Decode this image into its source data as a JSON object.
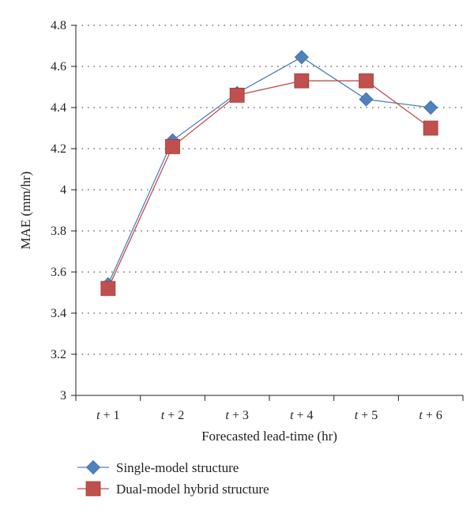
{
  "chart_data": {
    "type": "line",
    "categories": [
      {
        "var": "t",
        "rest": " + 1"
      },
      {
        "var": "t",
        "rest": " + 2"
      },
      {
        "var": "t",
        "rest": " + 3"
      },
      {
        "var": "t",
        "rest": " + 4"
      },
      {
        "var": "t",
        "rest": " + 5"
      },
      {
        "var": "t",
        "rest": " + 6"
      }
    ],
    "series": [
      {
        "name": "Single-model structure",
        "values": [
          3.54,
          4.24,
          4.47,
          4.645,
          4.44,
          4.4
        ],
        "color": "#4F81BD",
        "marker": "diamond"
      },
      {
        "name": "Dual-model hybrid structure",
        "values": [
          3.52,
          4.21,
          4.46,
          4.53,
          4.53,
          4.3
        ],
        "color": "#C0504D",
        "marker": "square"
      }
    ],
    "xlabel": "Forecasted lead-time (hr)",
    "ylabel": "MAE (mm/hr)",
    "ylim": [
      3,
      4.8
    ],
    "yticks": [
      "3",
      "3.2",
      "3.4",
      "3.6",
      "3.8",
      "4",
      "4.2",
      "4.4",
      "4.6",
      "4.8"
    ],
    "grid": "horizontal dotted",
    "legend_position": "bottom-left"
  }
}
